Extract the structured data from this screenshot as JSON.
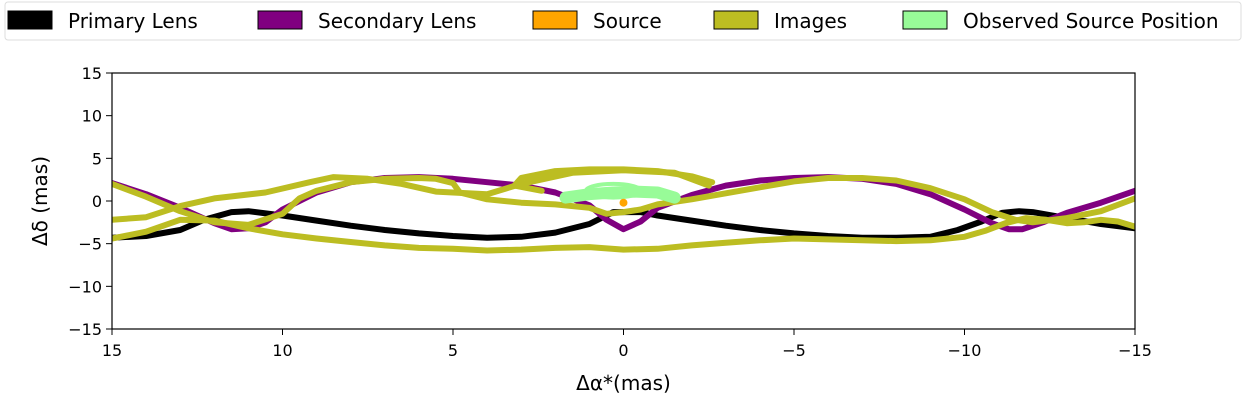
{
  "chart_data": {
    "type": "line",
    "title": "",
    "xlabel": "Δα*(mas)",
    "ylabel": "Δδ (mas)",
    "xlim": [
      15,
      -15
    ],
    "ylim": [
      -15,
      15
    ],
    "x_reversed": true,
    "xticks": [
      15,
      10,
      5,
      0,
      -5,
      -10,
      -15
    ],
    "xtick_labels": [
      "15",
      "10",
      "5",
      "0",
      "−5",
      "−10",
      "−15"
    ],
    "yticks": [
      15,
      10,
      5,
      0,
      -5,
      -10,
      -15
    ],
    "ytick_labels": [
      "15",
      "10",
      "5",
      "0",
      "−5",
      "−10",
      "−15"
    ],
    "grid": false,
    "legend_placement": "top",
    "legend": [
      {
        "label": "Primary Lens",
        "color": "#000000"
      },
      {
        "label": "Secondary Lens",
        "color": "#800080"
      },
      {
        "label": "Source",
        "color": "#ffa500"
      },
      {
        "label": "Images",
        "color": "#bcbd22"
      },
      {
        "label": "Observed Source Position",
        "color": "#98fb98"
      }
    ],
    "series": [
      {
        "name": "Primary Lens",
        "color": "#000000",
        "x": [
          15,
          14,
          13,
          12.3,
          11.5,
          11,
          10,
          9,
          8,
          7,
          6,
          5,
          4,
          3,
          2,
          1,
          0.3,
          -0.5,
          -1,
          -2,
          -3,
          -4,
          -5,
          -6,
          -7,
          -8,
          -9,
          -9.8,
          -10.5,
          -11.1,
          -11.6,
          -12,
          -13,
          -14,
          -15
        ],
        "y": [
          -4.3,
          -4.1,
          -3.4,
          -2.2,
          -1.3,
          -1.2,
          -1.7,
          -2.3,
          -2.9,
          -3.4,
          -3.8,
          -4.1,
          -4.3,
          -4.2,
          -3.7,
          -2.7,
          -1.3,
          -1.3,
          -1.7,
          -2.3,
          -2.9,
          -3.4,
          -3.8,
          -4.1,
          -4.3,
          -4.3,
          -4.2,
          -3.4,
          -2.4,
          -1.4,
          -1.2,
          -1.3,
          -2.0,
          -2.7,
          -3.2
        ]
      },
      {
        "name": "Secondary Lens",
        "color": "#800080",
        "x": [
          15,
          14,
          13,
          12,
          11.5,
          11,
          10.5,
          10,
          9,
          8,
          7,
          6,
          5,
          4,
          3,
          2,
          1,
          0.5,
          0,
          -0.5,
          -1,
          -2,
          -3,
          -4,
          -5,
          -6,
          -7,
          -8,
          -9,
          -10,
          -10.8,
          -11.3,
          -11.7,
          -12.3,
          -13,
          -14,
          -15
        ],
        "y": [
          2.1,
          0.8,
          -0.8,
          -2.6,
          -3.3,
          -3.2,
          -2.5,
          -1.0,
          1.0,
          2.2,
          2.7,
          2.8,
          2.6,
          2.2,
          1.8,
          1.0,
          -0.5,
          -2.2,
          -3.3,
          -2.4,
          -0.8,
          0.7,
          1.8,
          2.4,
          2.7,
          2.8,
          2.6,
          2.0,
          0.8,
          -1.0,
          -2.6,
          -3.3,
          -3.3,
          -2.5,
          -1.4,
          -0.2,
          1.2
        ]
      },
      {
        "name": "Images",
        "color": "#bcbd22",
        "x": [
          15,
          14,
          13,
          12,
          11,
          10,
          9.5,
          9,
          8,
          7,
          6,
          5.5,
          5,
          4.8,
          4,
          3,
          2,
          1,
          0.5,
          0,
          -0.5,
          -1,
          -2,
          -3,
          -4,
          -5,
          -6,
          -7,
          -8,
          -9,
          -10,
          -10.8,
          -11.5,
          -12,
          -13,
          -14,
          -15
        ],
        "y": [
          2.0,
          0.5,
          -1.2,
          -2.5,
          -2.8,
          -1.5,
          0.3,
          1.2,
          2.2,
          2.6,
          2.7,
          2.6,
          2.1,
          1.0,
          0.2,
          -0.2,
          -0.4,
          -0.8,
          -1.5,
          -1.3,
          -1.0,
          -0.4,
          0.2,
          0.9,
          1.6,
          2.3,
          2.7,
          2.7,
          2.4,
          1.5,
          0.2,
          -1.3,
          -2.2,
          -2.5,
          -2.0,
          -1.2,
          0.3
        ]
      },
      {
        "name": "Images",
        "color": "#bcbd22",
        "x": [
          15,
          14,
          13,
          12,
          11,
          10,
          9,
          8,
          7,
          6,
          5,
          4,
          3,
          2,
          1,
          0,
          -1,
          -2,
          -3,
          -4,
          -5,
          -6,
          -7,
          -8,
          -9,
          -10,
          -10.6,
          -11.2,
          -11.8,
          -12.4,
          -13,
          -13.5,
          -14,
          -14.5,
          -15
        ],
        "y": [
          -4.4,
          -3.6,
          -2.2,
          -2.3,
          -3.2,
          -3.9,
          -4.4,
          -4.8,
          -5.2,
          -5.5,
          -5.6,
          -5.8,
          -5.7,
          -5.5,
          -5.4,
          -5.7,
          -5.6,
          -5.2,
          -4.9,
          -4.6,
          -4.4,
          -4.5,
          -4.6,
          -4.7,
          -4.6,
          -4.2,
          -3.5,
          -2.6,
          -2.0,
          -2.2,
          -2.6,
          -2.5,
          -2.2,
          -2.4,
          -3.0
        ]
      },
      {
        "name": "Images",
        "color": "#bcbd22",
        "x": [
          -2.4,
          -2.5,
          -1.5,
          0,
          1.5,
          3,
          4,
          5.5,
          6.5,
          7.5,
          8.5,
          9.2,
          10.5,
          12,
          13,
          14,
          15
        ],
        "y": [
          2.2,
          1.8,
          3.3,
          3.6,
          3.3,
          2.0,
          0.8,
          1.1,
          2.0,
          2.6,
          2.8,
          2.2,
          1.0,
          0.3,
          -0.6,
          -1.9,
          -2.2
        ]
      },
      {
        "name": "Images",
        "color": "#bcbd22",
        "x": [
          2.4,
          3.2,
          3.0,
          2.0,
          1.0,
          0,
          -1,
          -2,
          -2.6
        ],
        "y": [
          1.2,
          1.8,
          2.7,
          3.5,
          3.7,
          3.7,
          3.5,
          2.9,
          2.2
        ]
      },
      {
        "name": "Observed Source Position",
        "color": "#98fb98",
        "type": "band",
        "x": [
          1.7,
          1.0,
          0.3,
          -0.3,
          -1.0,
          -1.5
        ],
        "y": [
          0.4,
          0.8,
          1.0,
          1.1,
          1.0,
          0.4
        ]
      },
      {
        "name": "Observed Source Position",
        "color": "#98fb98",
        "type": "loop",
        "center": [
          0.3,
          1.2
        ],
        "radius": 0.8
      },
      {
        "name": "Source",
        "color": "#ffa500",
        "type": "point",
        "x": [
          0
        ],
        "y": [
          -0.2
        ]
      }
    ]
  }
}
